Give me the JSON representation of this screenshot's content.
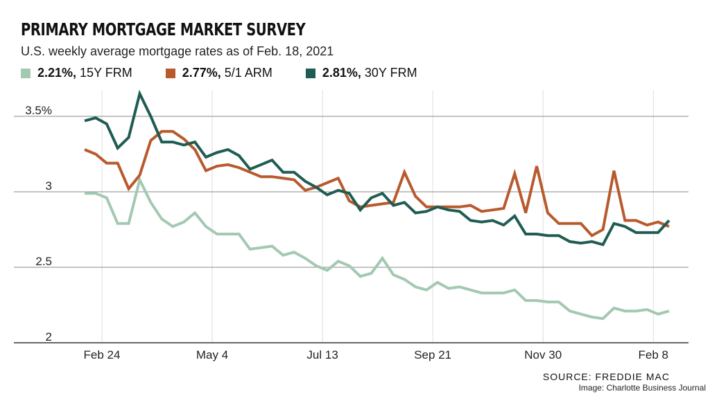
{
  "chart_data": {
    "type": "line",
    "title": "PRIMARY MORTGAGE MARKET SURVEY",
    "subtitle": "U.S. weekly average mortgage rates as of Feb. 18, 2021",
    "start_date": "2020-02-13",
    "end_date": "2021-02-18",
    "frequency": "weekly",
    "ylim": [
      2,
      3.5
    ],
    "yticks": [
      {
        "v": 3.5,
        "label": "3.5%"
      },
      {
        "v": 3,
        "label": "3"
      },
      {
        "v": 2.5,
        "label": "2.5"
      },
      {
        "v": 2,
        "label": "2"
      }
    ],
    "xticks": [
      {
        "date": "2020-02-24",
        "label": "Feb 24"
      },
      {
        "date": "2020-05-04",
        "label": "May 4"
      },
      {
        "date": "2020-07-13",
        "label": "Jul 13"
      },
      {
        "date": "2020-09-21",
        "label": "Sep 21"
      },
      {
        "date": "2020-11-30",
        "label": "Nov 30"
      },
      {
        "date": "2021-02-08",
        "label": "Feb 8"
      }
    ],
    "grid": true,
    "legend_position": "top",
    "series": [
      {
        "name": "15Y FRM",
        "latest": "2.21%,",
        "color": "#a3c9b2",
        "values": [
          2.99,
          2.99,
          2.96,
          2.79,
          2.79,
          3.08,
          2.93,
          2.82,
          2.77,
          2.8,
          2.86,
          2.77,
          2.72,
          2.72,
          2.72,
          2.62,
          2.63,
          2.64,
          2.58,
          2.6,
          2.56,
          2.51,
          2.48,
          2.54,
          2.51,
          2.44,
          2.46,
          2.56,
          2.45,
          2.42,
          2.37,
          2.35,
          2.4,
          2.36,
          2.37,
          2.35,
          2.33,
          2.33,
          2.33,
          2.35,
          2.28,
          2.28,
          2.27,
          2.27,
          2.21,
          2.19,
          2.17,
          2.16,
          2.23,
          2.21,
          2.21,
          2.22,
          2.19,
          2.21
        ]
      },
      {
        "name": "5/1 ARM",
        "latest": "2.77%,",
        "color": "#b85a2e",
        "values": [
          3.28,
          3.25,
          3.19,
          3.19,
          3.02,
          3.11,
          3.34,
          3.4,
          3.4,
          3.35,
          3.28,
          3.14,
          3.17,
          3.18,
          3.16,
          3.13,
          3.1,
          3.1,
          3.09,
          3.08,
          3.01,
          3.03,
          3.06,
          3.09,
          2.94,
          2.9,
          2.91,
          2.92,
          2.93,
          3.13,
          2.97,
          2.9,
          2.9,
          2.9,
          2.9,
          2.91,
          2.87,
          2.88,
          2.89,
          3.12,
          2.86,
          3.17,
          2.86,
          2.79,
          2.79,
          2.79,
          2.71,
          2.75,
          3.14,
          2.81,
          2.81,
          2.78,
          2.8,
          2.77
        ]
      },
      {
        "name": "30Y FRM",
        "latest": "2.81%,",
        "color": "#1f5c53",
        "values": [
          3.47,
          3.49,
          3.45,
          3.29,
          3.36,
          3.65,
          3.5,
          3.33,
          3.33,
          3.31,
          3.33,
          3.23,
          3.26,
          3.28,
          3.24,
          3.15,
          3.18,
          3.21,
          3.13,
          3.13,
          3.07,
          3.03,
          2.98,
          3.01,
          2.99,
          2.88,
          2.96,
          2.99,
          2.91,
          2.93,
          2.86,
          2.87,
          2.9,
          2.88,
          2.87,
          2.81,
          2.8,
          2.81,
          2.78,
          2.84,
          2.72,
          2.72,
          2.71,
          2.71,
          2.67,
          2.66,
          2.67,
          2.65,
          2.79,
          2.77,
          2.73,
          2.73,
          2.73,
          2.81
        ]
      }
    ]
  },
  "footer": {
    "source": "SOURCE: FREDDIE MAC",
    "credit": "Image: Charlotte Business Journal"
  }
}
